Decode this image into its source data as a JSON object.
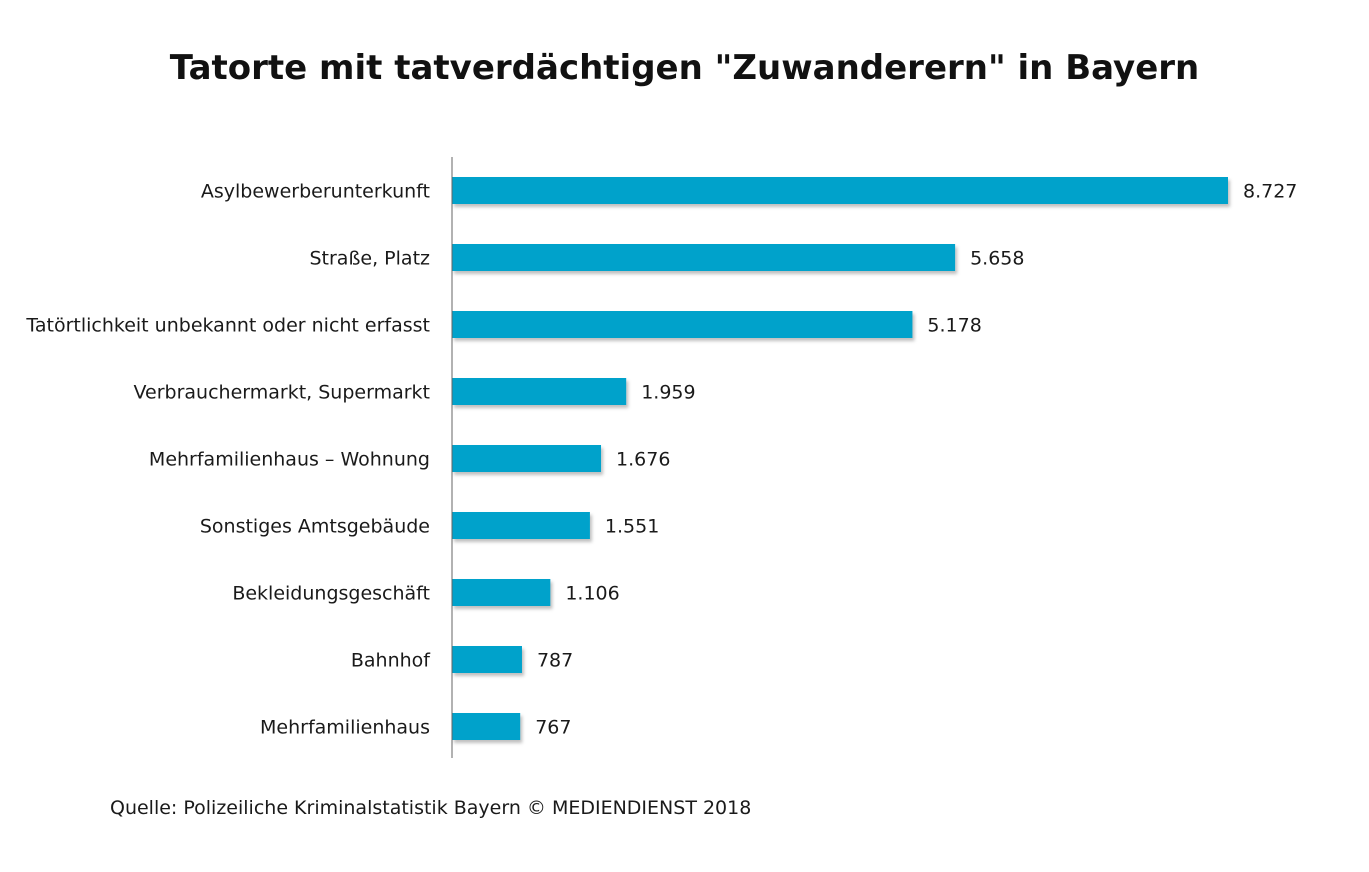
{
  "chart_data": {
    "type": "bar",
    "orientation": "horizontal",
    "title": "Tatorte mit tatverdächtigen \"Zuwanderern\" in Bayern",
    "categories": [
      "Asylbewerberunterkunft",
      "Straße, Platz",
      "Tatörtlichkeit unbekannt oder nicht erfasst",
      "Verbrauchermarkt, Supermarkt",
      "Mehrfamilienhaus – Wohnung",
      "Sonstiges Amtsgebäude",
      "Bekleidungsgeschäft",
      "Bahnhof",
      "Mehrfamilienhaus"
    ],
    "values": [
      8727,
      5658,
      5178,
      1959,
      1676,
      1551,
      1106,
      787,
      767
    ],
    "value_labels": [
      "8.727",
      "5.658",
      "5.178",
      "1.959",
      "1.676",
      "1.551",
      "1.106",
      "787",
      "767"
    ],
    "xlim": [
      0,
      8727
    ],
    "grid": false,
    "legend": "none",
    "bar_color": "#00a2cb"
  },
  "source": "Quelle: Polizeiliche Kriminalstatistik Bayern © MEDIENDIENST 2018"
}
